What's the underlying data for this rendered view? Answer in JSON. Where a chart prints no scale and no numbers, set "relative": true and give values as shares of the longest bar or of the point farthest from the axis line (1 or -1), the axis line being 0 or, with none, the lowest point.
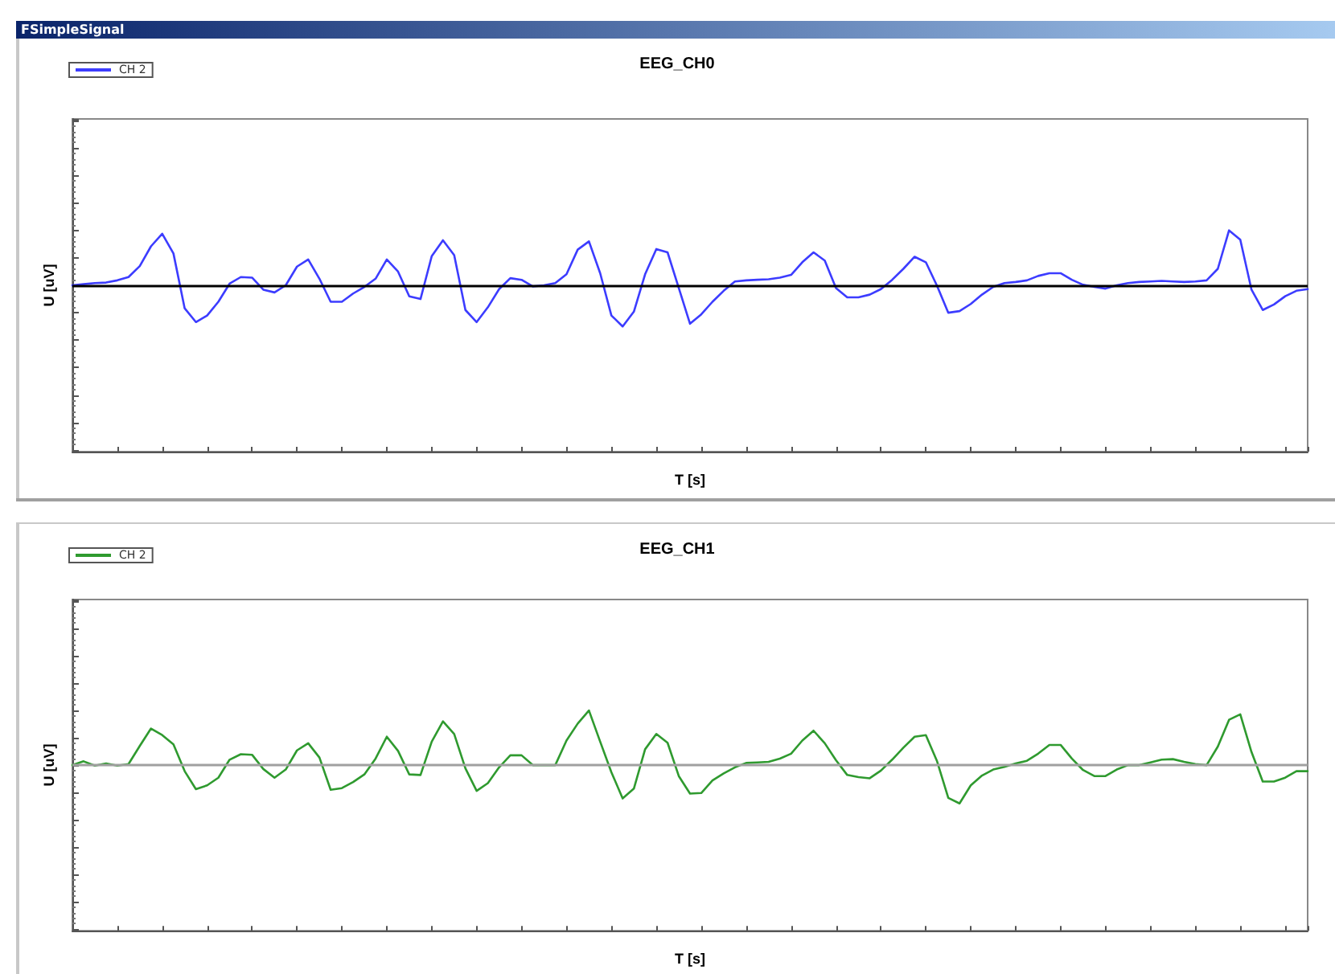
{
  "chart_data": [
    {
      "type": "line",
      "title": "EEG_CH0",
      "xlabel": "T [s]",
      "ylabel": "U [uV]",
      "annotations": [
        "FSimpleSignal"
      ],
      "relative": true,
      "grid": false,
      "legend": "top left",
      "categories": [
        null,
        null,
        null,
        null,
        null,
        null,
        null,
        null,
        null,
        null,
        null,
        null,
        null,
        null,
        null,
        null,
        null,
        null,
        null,
        null,
        null,
        null,
        null,
        null,
        null,
        null,
        null,
        null,
        null,
        null,
        null,
        null,
        null,
        null,
        null,
        null,
        null,
        null,
        null,
        null,
        null,
        null,
        null,
        null,
        null,
        null,
        null,
        null,
        null,
        null,
        null,
        null,
        null,
        null,
        null,
        null,
        null,
        null,
        null,
        null,
        null,
        null,
        null,
        null,
        null,
        null,
        null,
        null,
        null,
        null,
        null,
        null,
        null,
        null,
        null,
        null,
        null,
        null,
        null,
        null,
        null,
        null,
        null,
        null,
        null,
        null,
        null,
        null,
        null,
        null,
        null,
        null,
        null,
        null,
        null,
        null,
        null,
        null,
        null,
        null,
        null,
        null,
        null,
        null,
        null,
        null,
        null,
        null,
        null,
        null,
        null
      ],
      "ref_lines": [
        {
          "axis": "y",
          "value": 0,
          "color": "#000000"
        }
      ],
      "series": [
        {
          "name": "CH 2",
          "color": "#3c3cff",
          "values": [
            0,
            0.02,
            0.04,
            0.05,
            0.09,
            0.15,
            0.35,
            0.71,
            0.94,
            0.58,
            -0.42,
            -0.67,
            -0.55,
            -0.3,
            0.03,
            0.15,
            0.14,
            -0.08,
            -0.13,
            0,
            0.34,
            0.47,
            0.12,
            -0.3,
            -0.3,
            -0.15,
            -0.03,
            0.12,
            0.47,
            0.25,
            -0.2,
            -0.25,
            0.53,
            0.82,
            0.55,
            -0.45,
            -0.67,
            -0.4,
            -0.07,
            0.13,
            0.1,
            -0.02,
            0,
            0.04,
            0.2,
            0.65,
            0.8,
            0.22,
            -0.55,
            -0.75,
            -0.48,
            0.2,
            0.66,
            0.6,
            -0.05,
            -0.7,
            -0.53,
            -0.3,
            -0.1,
            0.07,
            0.09,
            0.1,
            0.11,
            0.14,
            0.19,
            0.42,
            0.6,
            0.45,
            -0.05,
            -0.22,
            -0.22,
            -0.17,
            -0.07,
            0.1,
            0.3,
            0.52,
            0.42,
            -0.01,
            -0.5,
            -0.47,
            -0.34,
            -0.17,
            -0.03,
            0.04,
            0.06,
            0.09,
            0.17,
            0.22,
            0.22,
            0.1,
            0.01,
            -0.03,
            -0.06,
            0,
            0.04,
            0.06,
            0.07,
            0.08,
            0.07,
            0.06,
            0.07,
            0.09,
            0.3,
            1,
            0.83,
            -0.08,
            -0.45,
            -0.35,
            -0.2,
            -0.1,
            -0.07
          ]
        }
      ]
    },
    {
      "type": "line",
      "title": "EEG_CH1",
      "xlabel": "T [s]",
      "ylabel": "U [uV]",
      "relative": true,
      "grid": false,
      "legend": "top left",
      "categories": [
        null,
        null,
        null,
        null,
        null,
        null,
        null,
        null,
        null,
        null,
        null,
        null,
        null,
        null,
        null,
        null,
        null,
        null,
        null,
        null,
        null,
        null,
        null,
        null,
        null,
        null,
        null,
        null,
        null,
        null,
        null,
        null,
        null,
        null,
        null,
        null,
        null,
        null,
        null,
        null,
        null,
        null,
        null,
        null,
        null,
        null,
        null,
        null,
        null,
        null,
        null,
        null,
        null,
        null,
        null,
        null,
        null,
        null,
        null,
        null,
        null,
        null,
        null,
        null,
        null,
        null,
        null,
        null,
        null,
        null,
        null,
        null,
        null,
        null,
        null,
        null,
        null,
        null,
        null,
        null,
        null,
        null,
        null,
        null,
        null,
        null,
        null,
        null,
        null,
        null,
        null,
        null,
        null,
        null,
        null,
        null,
        null,
        null,
        null,
        null,
        null,
        null,
        null,
        null,
        null,
        null,
        null,
        null,
        null,
        null,
        null
      ],
      "ref_lines": [
        {
          "axis": "y",
          "value": 0,
          "color": "#a0a0a0"
        }
      ],
      "series": [
        {
          "name": "CH 2",
          "color": "#2f9a2f",
          "values": [
            0,
            0.07,
            -0.01,
            0.03,
            -0.01,
            0.02,
            0.35,
            0.67,
            0.55,
            0.38,
            -0.11,
            -0.44,
            -0.37,
            -0.23,
            0.1,
            0.2,
            0.19,
            -0.07,
            -0.23,
            -0.08,
            0.27,
            0.4,
            0.14,
            -0.45,
            -0.42,
            -0.31,
            -0.17,
            0.12,
            0.52,
            0.26,
            -0.17,
            -0.18,
            0.43,
            0.8,
            0.57,
            -0.06,
            -0.47,
            -0.33,
            -0.04,
            0.18,
            0.18,
            0,
            0,
            0,
            0.45,
            0.76,
            1,
            0.43,
            -0.13,
            -0.61,
            -0.43,
            0.29,
            0.57,
            0.41,
            -0.2,
            -0.52,
            -0.51,
            -0.28,
            -0.15,
            -0.04,
            0.04,
            0.05,
            0.06,
            0.12,
            0.21,
            0.45,
            0.63,
            0.4,
            0.09,
            -0.18,
            -0.22,
            -0.24,
            -0.1,
            0.1,
            0.32,
            0.52,
            0.55,
            0.07,
            -0.6,
            -0.7,
            -0.37,
            -0.19,
            -0.08,
            -0.03,
            0.03,
            0.08,
            0.21,
            0.37,
            0.37,
            0.12,
            -0.09,
            -0.2,
            -0.2,
            -0.08,
            0,
            0,
            0.05,
            0.1,
            0.11,
            0.06,
            0.02,
            0,
            0.34,
            0.83,
            0.93,
            0.24,
            -0.3,
            -0.3,
            -0.23,
            -0.11,
            -0.11
          ]
        }
      ]
    }
  ]
}
